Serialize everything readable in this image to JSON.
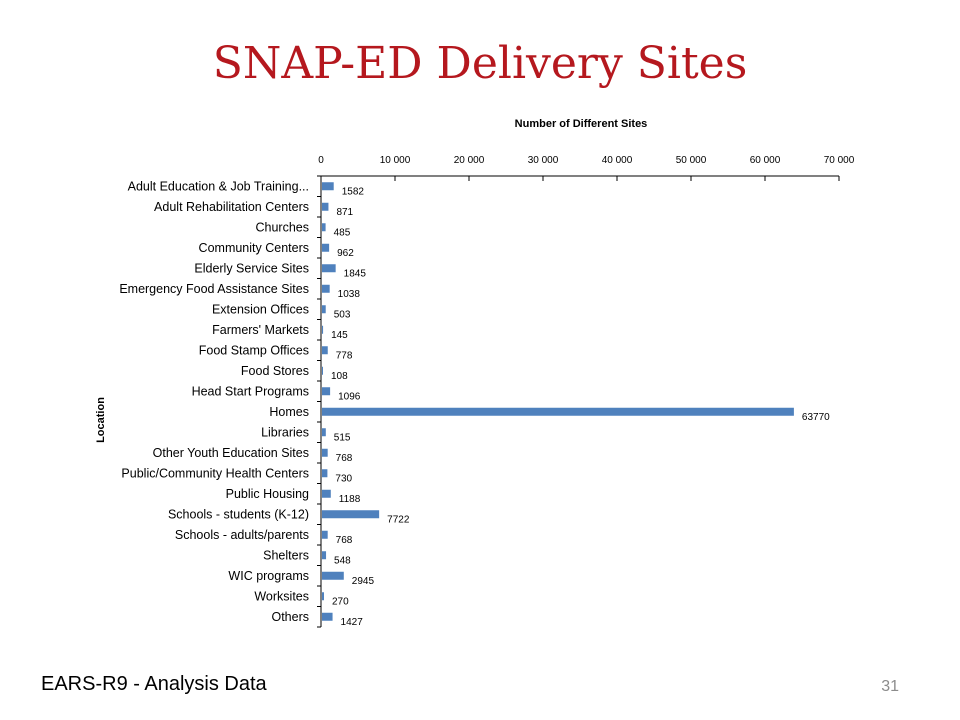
{
  "slide": {
    "title": "SNAP-ED Delivery Sites",
    "footer": "EARS-R9 - Analysis Data",
    "page_number": "31"
  },
  "colors": {
    "title": "#b5181e",
    "bar": "#4f81bd",
    "axis": "#000000"
  },
  "chart_data": {
    "type": "bar",
    "orientation": "horizontal",
    "title": "Number of Different Sites",
    "xlabel": "Number of Different Sites",
    "ylabel": "Location",
    "xaxis_position": "top",
    "xlim": [
      0,
      70000
    ],
    "xticks": [
      0,
      10000,
      20000,
      30000,
      40000,
      50000,
      60000,
      70000
    ],
    "xtick_labels": [
      "0",
      "10 000",
      "20 000",
      "30 000",
      "40 000",
      "50 000",
      "60 000",
      "70 000"
    ],
    "grid": false,
    "legend": "none",
    "categories": [
      "Adult Education & Job Training...",
      "Adult Rehabilitation Centers",
      "Churches",
      "Community Centers",
      "Elderly Service Sites",
      "Emergency Food Assistance Sites",
      "Extension Offices",
      "Farmers' Markets",
      "Food Stamp Offices",
      "Food Stores",
      "Head Start Programs",
      "Homes",
      "Libraries",
      "Other Youth Education Sites",
      "Public/Community Health Centers",
      "Public Housing",
      "Schools - students (K-12)",
      "Schools - adults/parents",
      "Shelters",
      "WIC programs",
      "Worksites",
      "Others"
    ],
    "values": [
      1582,
      871,
      485,
      962,
      1845,
      1038,
      503,
      145,
      778,
      108,
      1096,
      63770,
      515,
      768,
      730,
      1188,
      7722,
      768,
      548,
      2945,
      270,
      1427
    ]
  }
}
